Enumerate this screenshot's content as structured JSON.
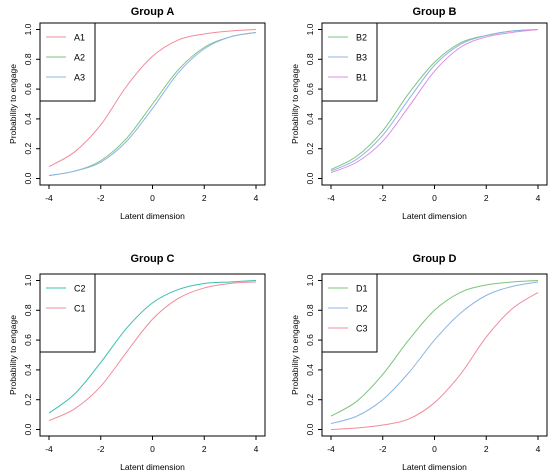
{
  "chart_data": [
    {
      "type": "line",
      "title": "Group A",
      "xlabel": "Latent dimension",
      "ylabel": "Probability to engage",
      "xlim": [
        -4,
        4
      ],
      "ylim": [
        0,
        1
      ],
      "xticks": [
        "-4",
        "-2",
        "0",
        "2",
        "4"
      ],
      "yticks": [
        "0.0",
        "0.2",
        "0.4",
        "0.6",
        "0.8",
        "1.0"
      ],
      "legend_position": "top-left",
      "series": [
        {
          "name": "A1",
          "color": "#F08C9B",
          "x": [
            -4,
            -3,
            -2,
            -1,
            0,
            1,
            2,
            3,
            4
          ],
          "y": [
            0.08,
            0.18,
            0.36,
            0.62,
            0.82,
            0.93,
            0.97,
            0.99,
            1.0
          ]
        },
        {
          "name": "A2",
          "color": "#7CC47C",
          "x": [
            -4,
            -3,
            -2,
            -1,
            0,
            1,
            2,
            3,
            4
          ],
          "y": [
            0.02,
            0.05,
            0.12,
            0.27,
            0.5,
            0.73,
            0.88,
            0.95,
            0.98
          ]
        },
        {
          "name": "A3",
          "color": "#8CB4E6",
          "x": [
            -4,
            -3,
            -2,
            -1,
            0,
            1,
            2,
            3,
            4
          ],
          "y": [
            0.02,
            0.05,
            0.11,
            0.25,
            0.47,
            0.71,
            0.87,
            0.95,
            0.98
          ]
        }
      ]
    },
    {
      "type": "line",
      "title": "Group B",
      "xlabel": "Latent dimension",
      "ylabel": "Probability to engage",
      "xlim": [
        -4,
        4
      ],
      "ylim": [
        0,
        1
      ],
      "xticks": [
        "-4",
        "-2",
        "0",
        "2",
        "4"
      ],
      "yticks": [
        "0.0",
        "0.2",
        "0.4",
        "0.6",
        "0.8",
        "1.0"
      ],
      "legend_position": "top-left",
      "series": [
        {
          "name": "B2",
          "color": "#7CC47C",
          "x": [
            -4,
            -3,
            -2,
            -1,
            0,
            1,
            2,
            3,
            4
          ],
          "y": [
            0.06,
            0.15,
            0.32,
            0.57,
            0.78,
            0.91,
            0.96,
            0.99,
            1.0
          ]
        },
        {
          "name": "B3",
          "color": "#8CB4E6",
          "x": [
            -4,
            -3,
            -2,
            -1,
            0,
            1,
            2,
            3,
            4
          ],
          "y": [
            0.05,
            0.13,
            0.29,
            0.53,
            0.76,
            0.9,
            0.96,
            0.99,
            1.0
          ]
        },
        {
          "name": "B1",
          "color": "#E08CE0",
          "x": [
            -4,
            -3,
            -2,
            -1,
            0,
            1,
            2,
            3,
            4
          ],
          "y": [
            0.04,
            0.11,
            0.25,
            0.48,
            0.72,
            0.88,
            0.95,
            0.98,
            1.0
          ]
        }
      ]
    },
    {
      "type": "line",
      "title": "Group C",
      "xlabel": "Latent dimension",
      "ylabel": "Probability to engage",
      "xlim": [
        -4,
        4
      ],
      "ylim": [
        0,
        1
      ],
      "xticks": [
        "-4",
        "-2",
        "0",
        "2",
        "4"
      ],
      "yticks": [
        "0.0",
        "0.2",
        "0.4",
        "0.6",
        "0.8",
        "1.0"
      ],
      "legend_position": "top-left",
      "series": [
        {
          "name": "C2",
          "color": "#3DBFAE",
          "x": [
            -4,
            -3,
            -2,
            -1,
            0,
            1,
            2,
            3,
            4
          ],
          "y": [
            0.11,
            0.24,
            0.45,
            0.68,
            0.85,
            0.94,
            0.98,
            0.99,
            1.0
          ]
        },
        {
          "name": "C1",
          "color": "#F08C9B",
          "x": [
            -4,
            -3,
            -2,
            -1,
            0,
            1,
            2,
            3,
            4
          ],
          "y": [
            0.06,
            0.14,
            0.29,
            0.52,
            0.74,
            0.88,
            0.95,
            0.98,
            0.99
          ]
        }
      ]
    },
    {
      "type": "line",
      "title": "Group D",
      "xlabel": "Latent dimension",
      "ylabel": "Probability to engage",
      "xlim": [
        -4,
        4
      ],
      "ylim": [
        0,
        1
      ],
      "xticks": [
        "-4",
        "-2",
        "0",
        "2",
        "4"
      ],
      "yticks": [
        "0.0",
        "0.2",
        "0.4",
        "0.6",
        "0.8",
        "1.0"
      ],
      "legend_position": "top-left",
      "series": [
        {
          "name": "D1",
          "color": "#7CC47C",
          "x": [
            -4,
            -3,
            -2,
            -1,
            0,
            1,
            2,
            3,
            4
          ],
          "y": [
            0.09,
            0.19,
            0.37,
            0.6,
            0.8,
            0.92,
            0.97,
            0.99,
            1.0
          ]
        },
        {
          "name": "D2",
          "color": "#8CB4E6",
          "x": [
            -4,
            -3,
            -2,
            -1,
            0,
            1,
            2,
            3,
            4
          ],
          "y": [
            0.04,
            0.09,
            0.2,
            0.38,
            0.6,
            0.78,
            0.9,
            0.96,
            0.99
          ]
        },
        {
          "name": "C3",
          "color": "#F08C9B",
          "x": [
            -4,
            -3,
            -2,
            -1,
            0,
            1,
            2,
            3,
            4
          ],
          "y": [
            0.0,
            0.01,
            0.03,
            0.07,
            0.18,
            0.37,
            0.62,
            0.81,
            0.92
          ]
        }
      ]
    }
  ]
}
